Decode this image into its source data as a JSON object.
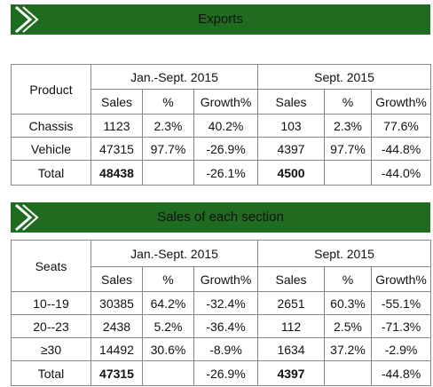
{
  "exports": {
    "title": "Exports",
    "table": {
      "corner": "Product",
      "groups": [
        "Jan.-Sept. 2015",
        "Sept. 2015"
      ],
      "columns": [
        "Sales",
        "%",
        "Growth%",
        "Sales",
        "%",
        "Growth%"
      ],
      "rows": [
        [
          "Chassis",
          "1123",
          "2.3%",
          "40.2%",
          "103",
          "2.3%",
          "77.6%"
        ],
        [
          "Vehicle",
          "47315",
          "97.7%",
          "-26.9%",
          "4397",
          "97.7%",
          "-44.8%"
        ],
        [
          "Total",
          "48438",
          null,
          "-26.1%",
          "4500",
          null,
          "-44.0%"
        ]
      ]
    }
  },
  "sections": {
    "title": "Sales of each section",
    "table": {
      "corner": "Seats",
      "groups": [
        "Jan.-Sept. 2015",
        "Sept. 2015"
      ],
      "columns": [
        "Sales",
        "%",
        "Growth%",
        "Sales",
        "%",
        "Growth%"
      ],
      "rows": [
        [
          "10--19",
          "30385",
          "64.2%",
          "-32.4%",
          "2651",
          "60.3%",
          "-55.1%"
        ],
        [
          "20--23",
          "2438",
          "5.2%",
          "-36.4%",
          "112",
          "2.5%",
          "-71.3%"
        ],
        [
          "≥30",
          "14492",
          "30.6%",
          "-8.9%",
          "1634",
          "37.2%",
          "-2.9%"
        ],
        [
          "Total",
          "47315",
          null,
          "-26.9%",
          "4397",
          null,
          "-44.8%"
        ]
      ]
    }
  }
}
